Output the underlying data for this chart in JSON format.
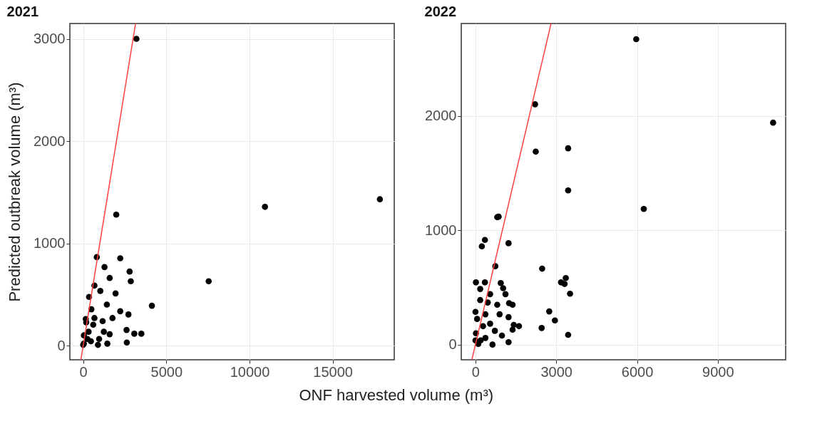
{
  "chart_data": [
    {
      "type": "scatter",
      "title": "2021",
      "xlabel": "ONF harvested volume (m³)",
      "ylabel": "Predicted outbreak volume (m³)",
      "xlim": [
        -800,
        18700
      ],
      "ylim": [
        -139,
        3150
      ],
      "xticks": [
        0,
        5000,
        10000,
        15000
      ],
      "yticks": [
        0,
        1000,
        2000,
        3000
      ],
      "grid": true,
      "marker": "circle",
      "series": [
        {
          "color": "#000000",
          "x": [
            3200,
            1988,
            10928,
            17837,
            818,
            2228,
            1283,
            2792,
            1593,
            2862,
            7544,
            677,
            1029,
            1946,
            353,
            4131,
            1424,
            494,
            2228,
            2721,
            155,
            677,
            1170,
            1762,
            183,
            606,
            2608,
            1241,
            3074,
            3497,
            1593,
            2623,
            42,
            324,
            959,
            1452,
            465,
            42,
            888,
            254,
            0
          ],
          "values": [
            3000,
            1281,
            1357,
            1431,
            865,
            854,
            768,
            724,
            661,
            629,
            629,
            587,
            534,
            510,
            476,
            390,
            401,
            355,
            336,
            304,
            260,
            269,
            239,
            269,
            227,
            204,
            153,
            135,
            116,
            116,
            111,
            30,
            100,
            135,
            65,
            19,
            42,
            19,
            7,
            65,
            7
          ]
        },
        {
          "type": "line",
          "color": "#ff4040",
          "marker": "none",
          "x": [
            -139,
            3150
          ],
          "values": [
            -139,
            3150
          ]
        }
      ]
    },
    {
      "type": "scatter",
      "title": "2022",
      "xlim": [
        -527,
        11520
      ],
      "ylim": [
        -133,
        2807
      ],
      "xticks": [
        0,
        3000,
        6000,
        9000
      ],
      "yticks": [
        0,
        1000,
        2000
      ],
      "grid": true,
      "marker": "circle",
      "series": [
        {
          "color": "#000000",
          "x": [
            5970,
            11054,
            2213,
            2239,
            3442,
            3442,
            6251,
            808,
            860,
            351,
            237,
            1229,
            738,
            2476,
            3354,
            3178,
            3310,
            3512,
            18,
            351,
            176,
            939,
            1027,
            1115,
            544,
            176,
            1247,
            808,
            1378,
            2739,
            896,
            0,
            61,
            1229,
            2950,
            1422,
            1616,
            1378,
            2458,
            3442,
            281,
            544,
            720,
            983,
            1229,
            632,
            105,
            369,
            18,
            193,
            456,
            0,
            369
          ],
          "values": [
            2670,
            1940,
            2101,
            1687,
            1716,
            1348,
            1186,
            1114,
            1118,
            915,
            859,
            886,
            685,
            664,
            582,
            544,
            530,
            445,
            544,
            544,
            486,
            538,
            493,
            441,
            441,
            389,
            362,
            348,
            348,
            290,
            265,
            286,
            224,
            240,
            211,
            172,
            161,
            130,
            145,
            85,
            161,
            182,
            120,
            79,
            21,
            0,
            6,
            58,
            99,
            37,
            368,
            37,
            265
          ]
        },
        {
          "type": "line",
          "color": "#ff4040",
          "marker": "none",
          "x": [
            -133,
            2807
          ],
          "values": [
            -133,
            2807
          ]
        }
      ]
    }
  ]
}
